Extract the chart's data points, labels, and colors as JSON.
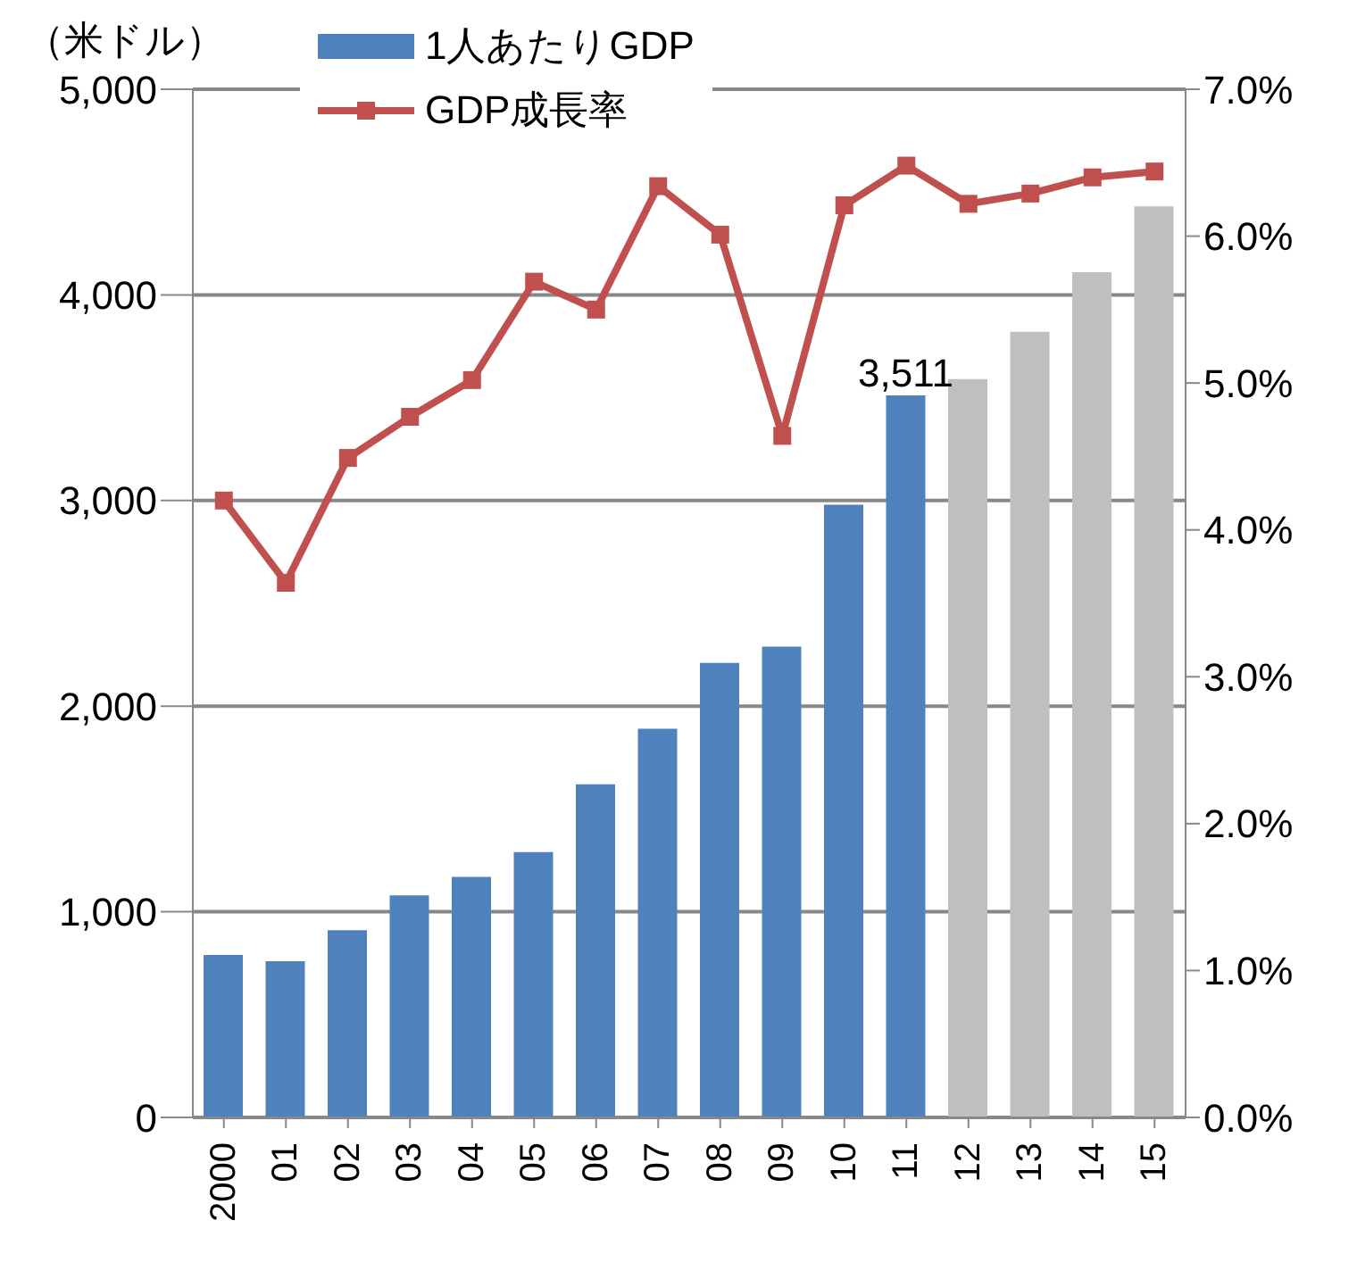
{
  "chart_data": {
    "type": "bar",
    "ylabel": "（米ドル）",
    "categories": [
      "2000",
      "01",
      "02",
      "03",
      "04",
      "05",
      "06",
      "07",
      "08",
      "09",
      "10",
      "11",
      "12",
      "13",
      "14",
      "15"
    ],
    "series": [
      {
        "name": "1人あたりGDP",
        "color": "#4f81bd",
        "colors": [
          "#4f81bd",
          "#4f81bd",
          "#4f81bd",
          "#4f81bd",
          "#4f81bd",
          "#4f81bd",
          "#4f81bd",
          "#4f81bd",
          "#4f81bd",
          "#4f81bd",
          "#4f81bd",
          "#4f81bd",
          "#bfbfbf",
          "#bfbfbf",
          "#bfbfbf",
          "#bfbfbf"
        ],
        "values": [
          790,
          760,
          910,
          1080,
          1170,
          1290,
          1620,
          1890,
          2210,
          2290,
          2980,
          3511,
          3590,
          3820,
          4110,
          4430
        ],
        "value_labels": [
          null,
          null,
          null,
          null,
          null,
          null,
          null,
          null,
          null,
          null,
          null,
          "3,511",
          null,
          null,
          null,
          null
        ]
      },
      {
        "name": "GDP成長率",
        "type": "line",
        "axis": "y2",
        "color": "#c0504d",
        "values": [
          4.2,
          3.64,
          4.49,
          4.77,
          5.02,
          5.69,
          5.5,
          6.34,
          6.01,
          4.64,
          6.21,
          6.48,
          6.22,
          6.29,
          6.4,
          6.44
        ]
      }
    ],
    "ylim": [
      0,
      5000
    ],
    "yticks": [
      {
        "value": 0,
        "label": "0"
      },
      {
        "value": 1000,
        "label": "1,000"
      },
      {
        "value": 2000,
        "label": "2,000"
      },
      {
        "value": 3000,
        "label": "3,000"
      },
      {
        "value": 4000,
        "label": "4,000"
      },
      {
        "value": 5000,
        "label": "5,000"
      }
    ],
    "y2lim": [
      0,
      7
    ],
    "y2ticks": [
      {
        "value": 0,
        "label": "0.0%"
      },
      {
        "value": 1,
        "label": "1.0%"
      },
      {
        "value": 2,
        "label": "2.0%"
      },
      {
        "value": 3,
        "label": "3.0%"
      },
      {
        "value": 4,
        "label": "4.0%"
      },
      {
        "value": 5,
        "label": "5.0%"
      },
      {
        "value": 6,
        "label": "6.0%"
      },
      {
        "value": 7,
        "label": "7.0%"
      }
    ],
    "grid": "y",
    "legend": "top",
    "marker": "square",
    "line_style": "solid"
  }
}
